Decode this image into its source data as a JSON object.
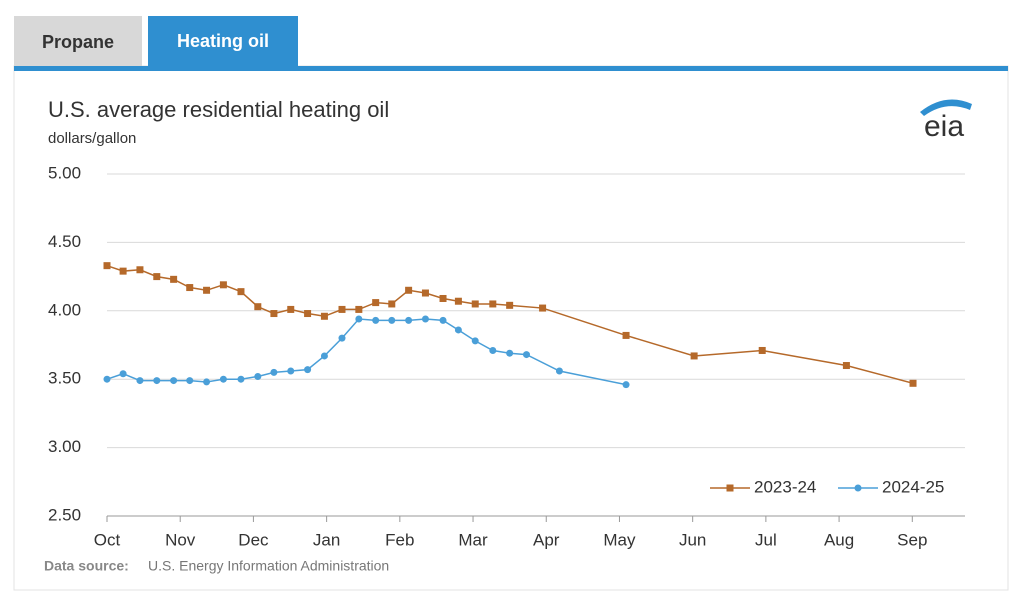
{
  "tabs": [
    "Propane",
    "Heating oil"
  ],
  "chart_data": {
    "type": "line",
    "title": "U.S. average residential heating oil",
    "subtitle": "dollars/gallon",
    "logo": "eia",
    "source_label": "Data source:",
    "source": "U.S. Energy Information Administration",
    "grid": true,
    "legend": "lower right",
    "xlim": [
      0,
      11.72
    ],
    "xticks": [
      {
        "value": 0,
        "label": "Oct"
      },
      {
        "value": 1,
        "label": "Nov"
      },
      {
        "value": 2,
        "label": "Dec"
      },
      {
        "value": 3,
        "label": "Jan"
      },
      {
        "value": 4,
        "label": "Feb"
      },
      {
        "value": 5,
        "label": "Mar"
      },
      {
        "value": 6,
        "label": "Apr"
      },
      {
        "value": 7,
        "label": "May"
      },
      {
        "value": 8,
        "label": "Jun"
      },
      {
        "value": 9,
        "label": "Jul"
      },
      {
        "value": 10,
        "label": "Aug"
      },
      {
        "value": 11,
        "label": "Sep"
      }
    ],
    "ylim": [
      2.5,
      5
    ],
    "yticks": [
      {
        "value": 2.5,
        "label": "2.50"
      },
      {
        "value": 3,
        "label": "3.00"
      },
      {
        "value": 3.5,
        "label": "3.50"
      },
      {
        "value": 4,
        "label": "4.00"
      },
      {
        "value": 4.5,
        "label": "4.50"
      },
      {
        "value": 5,
        "label": "5.00"
      }
    ],
    "series": [
      {
        "name": "2023-24",
        "color": "#b5692a",
        "marker": "square",
        "x": [
          0,
          0.22,
          0.45,
          0.68,
          0.91,
          1.13,
          1.36,
          1.59,
          1.83,
          2.06,
          2.28,
          2.51,
          2.74,
          2.97,
          3.21,
          3.44,
          3.67,
          3.89,
          4.12,
          4.35,
          4.59,
          4.8,
          5.03,
          5.27,
          5.5,
          5.95,
          7.09,
          8.02,
          8.95,
          10.1,
          11.01
        ],
        "values": [
          4.33,
          4.29,
          4.3,
          4.25,
          4.23,
          4.17,
          4.15,
          4.19,
          4.14,
          4.03,
          3.98,
          4.01,
          3.98,
          3.96,
          4.01,
          4.01,
          4.06,
          4.05,
          4.15,
          4.13,
          4.09,
          4.07,
          4.05,
          4.05,
          4.04,
          4.02,
          3.82,
          3.67,
          3.71,
          3.6,
          3.47
        ]
      },
      {
        "name": "2024-25",
        "color": "#4a9fd8",
        "marker": "circle",
        "x": [
          0,
          0.22,
          0.45,
          0.68,
          0.91,
          1.13,
          1.36,
          1.59,
          1.83,
          2.06,
          2.28,
          2.51,
          2.74,
          2.97,
          3.21,
          3.44,
          3.67,
          3.89,
          4.12,
          4.35,
          4.59,
          4.8,
          5.03,
          5.27,
          5.5,
          5.73,
          6.18,
          7.09
        ],
        "values": [
          3.5,
          3.54,
          3.49,
          3.49,
          3.49,
          3.49,
          3.48,
          3.5,
          3.5,
          3.52,
          3.55,
          3.56,
          3.57,
          3.67,
          3.8,
          3.94,
          3.93,
          3.93,
          3.93,
          3.94,
          3.93,
          3.86,
          3.78,
          3.71,
          3.69,
          3.68,
          3.56,
          3.46
        ]
      }
    ]
  }
}
